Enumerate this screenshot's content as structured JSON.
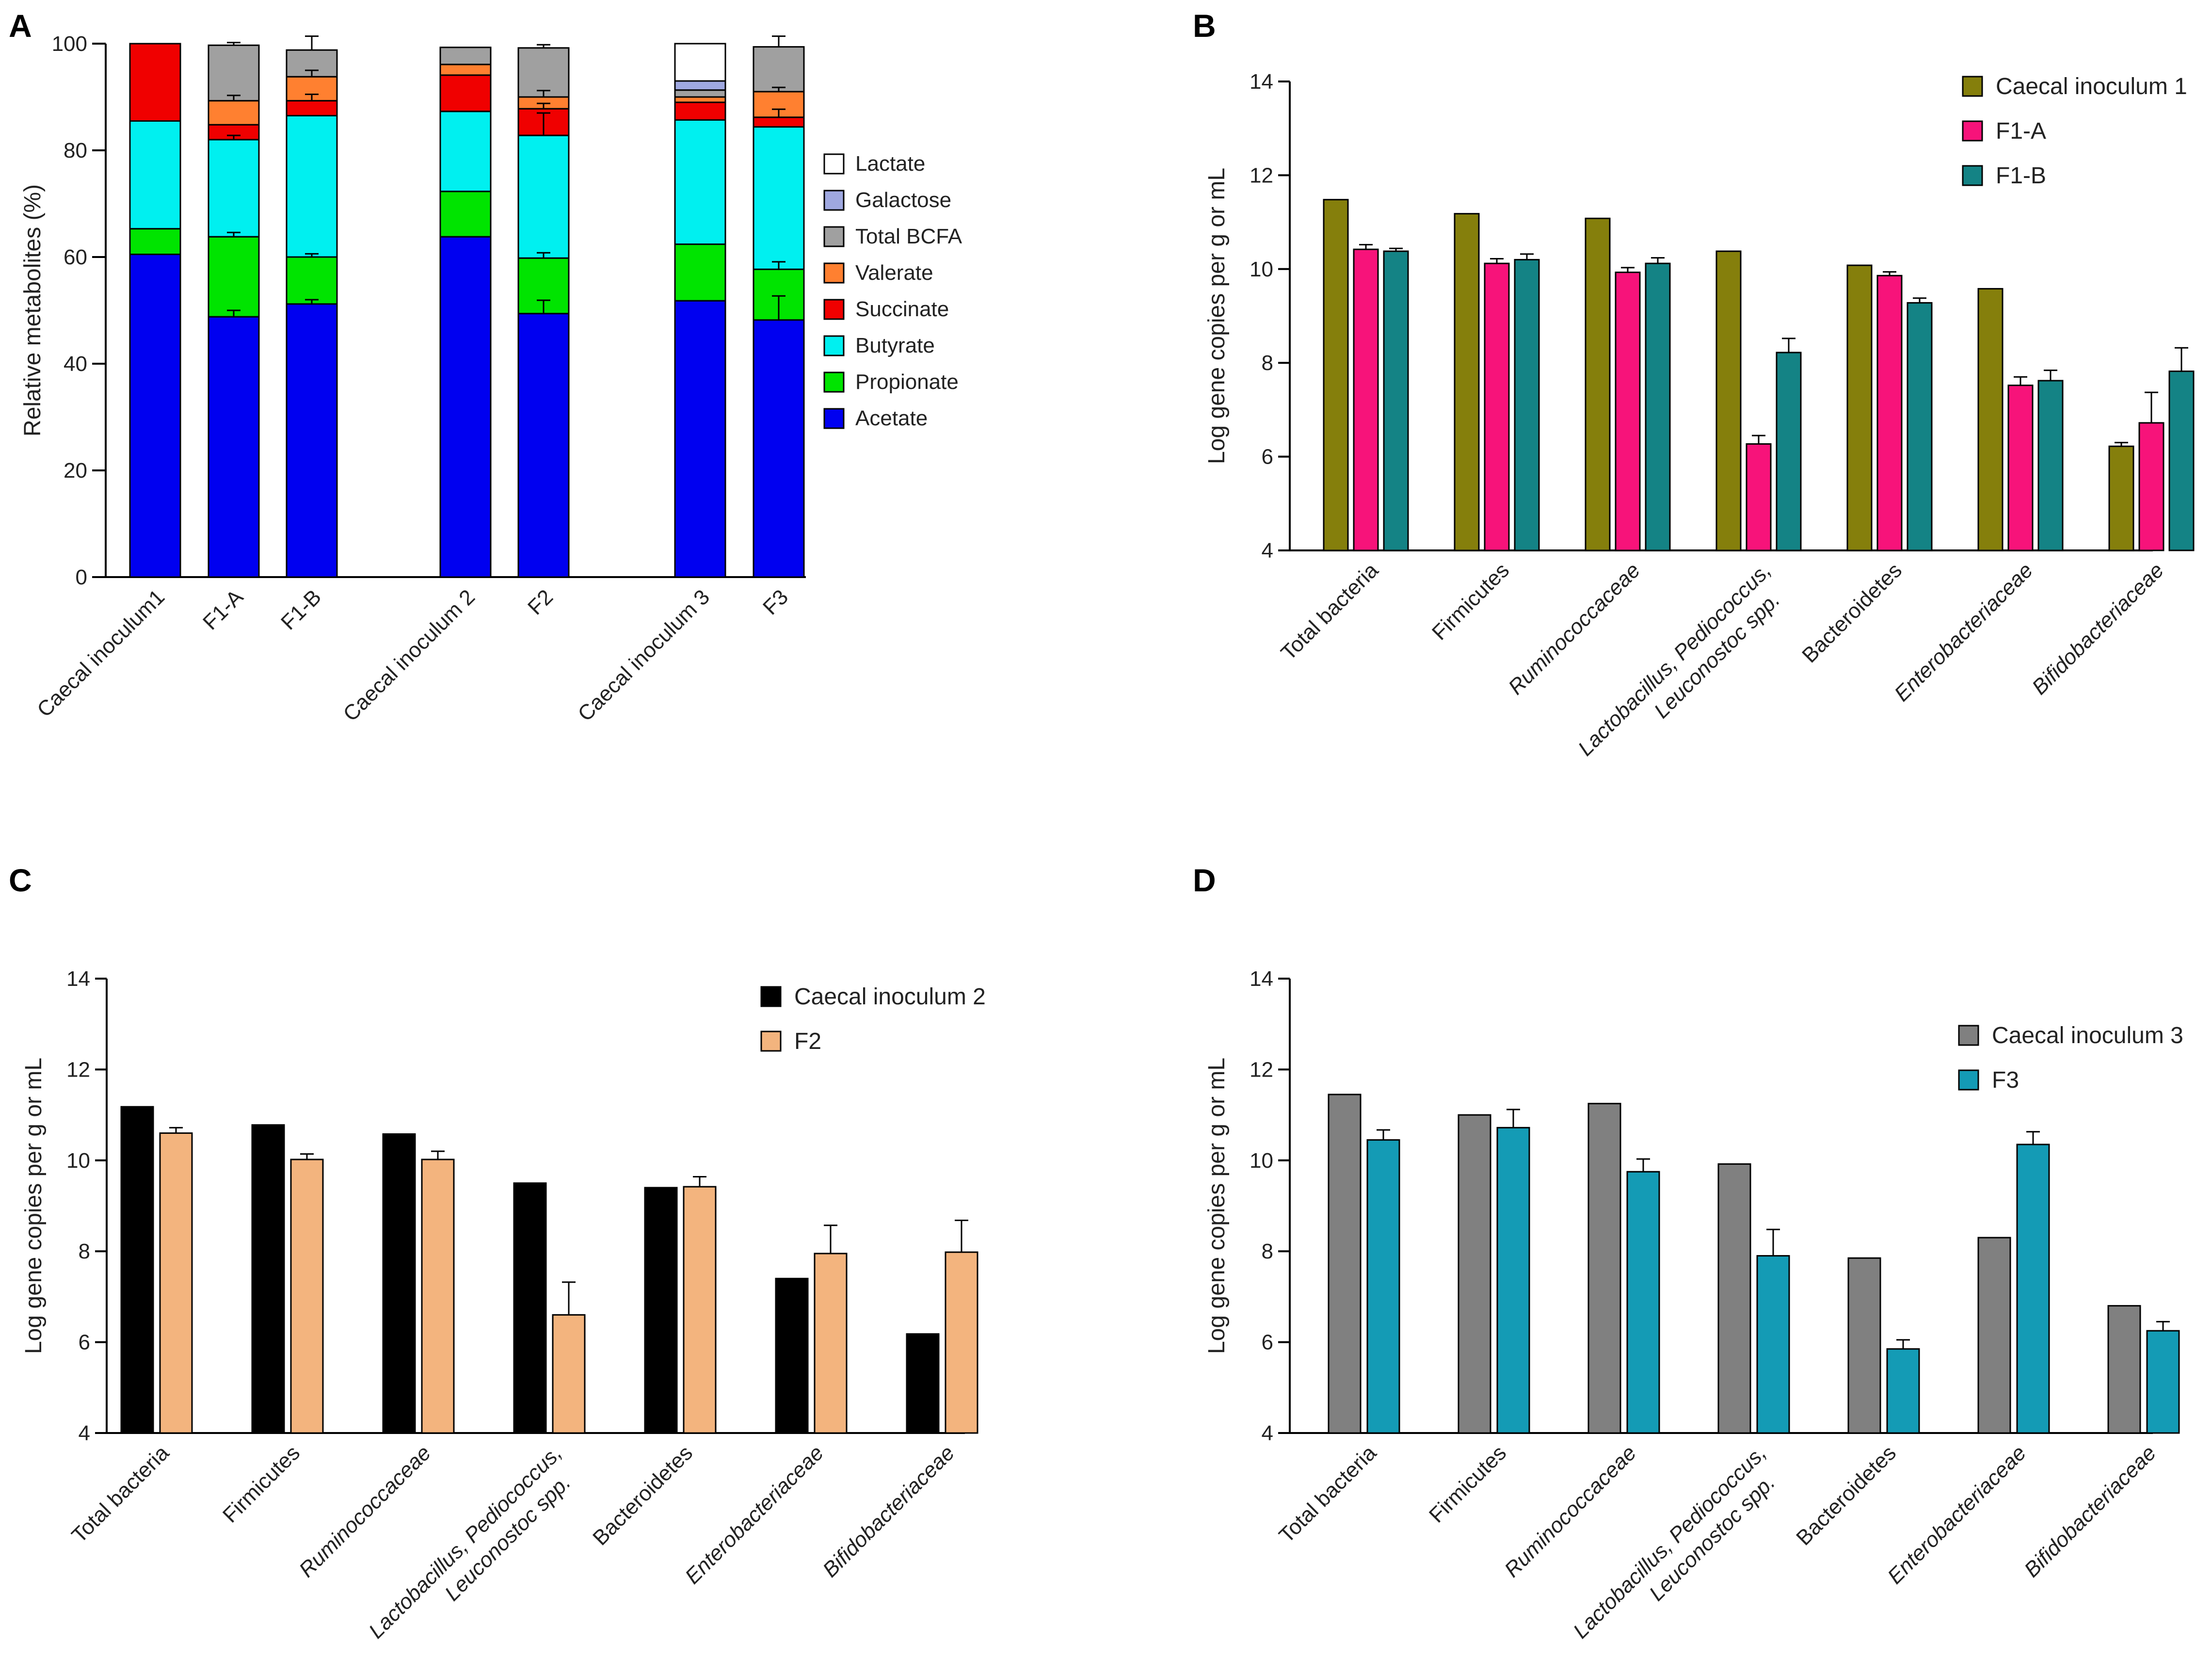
{
  "figure": {
    "panels": [
      {
        "letter": "A"
      },
      {
        "letter": "B"
      },
      {
        "letter": "C"
      },
      {
        "letter": "D"
      }
    ]
  },
  "chart_data": [
    {
      "panel": "A",
      "type": "bar",
      "stacked": true,
      "ylabel": "Relative metabolites (%)",
      "ylim": [
        0,
        100
      ],
      "yticks": [
        0,
        20,
        40,
        60,
        80,
        100
      ],
      "categories": [
        "Caecal inoculum1",
        "F1-A",
        "F1-B",
        "Caecal inoculum 2",
        "F2",
        "Caecal inoculum 3",
        "F3"
      ],
      "groups": [
        [
          0,
          1,
          2
        ],
        [
          3,
          4
        ],
        [
          5,
          6
        ]
      ],
      "series": [
        {
          "name": "Acetate",
          "color": "#0000f0",
          "values": [
            60.5,
            48.8,
            51.2,
            63.8,
            49.4,
            51.8,
            48.2
          ]
        },
        {
          "name": "Propionate",
          "color": "#00e400",
          "values": [
            4.8,
            15.0,
            8.8,
            8.5,
            10.4,
            10.6,
            9.5
          ]
        },
        {
          "name": "Butyrate",
          "color": "#00f0f0",
          "values": [
            20.2,
            18.2,
            26.5,
            15.0,
            23.0,
            23.3,
            26.7
          ]
        },
        {
          "name": "Succinate",
          "color": "#f00000",
          "values": [
            14.5,
            2.8,
            2.8,
            6.8,
            5.0,
            3.3,
            1.8
          ]
        },
        {
          "name": "Valerate",
          "color": "#ff8030",
          "values": [
            0,
            4.5,
            4.5,
            2.0,
            2.2,
            1.0,
            4.8
          ]
        },
        {
          "name": "Total BCFA",
          "color": "#a0a0a0",
          "values": [
            0,
            10.4,
            5.0,
            3.2,
            9.2,
            1.3,
            8.4
          ]
        },
        {
          "name": "Galactose",
          "color": "#9fa8e0",
          "values": [
            0,
            0,
            0,
            0,
            0,
            1.7,
            0
          ]
        },
        {
          "name": "Lactate",
          "color": "#ffffff",
          "values": [
            0,
            0,
            0,
            0,
            0,
            7.0,
            0
          ]
        }
      ],
      "error_bars": [
        {
          "series": "Acetate",
          "cat": 1,
          "err": 1.2
        },
        {
          "series": "Acetate",
          "cat": 2,
          "err": 0.8
        },
        {
          "series": "Acetate",
          "cat": 4,
          "err": 2.5
        },
        {
          "series": "Acetate",
          "cat": 6,
          "err": 4.5
        },
        {
          "series": "Propionate",
          "cat": 1,
          "err": 0.8
        },
        {
          "series": "Propionate",
          "cat": 2,
          "err": 0.6
        },
        {
          "series": "Propionate",
          "cat": 4,
          "err": 1.0
        },
        {
          "series": "Propionate",
          "cat": 6,
          "err": 1.4
        },
        {
          "series": "Butyrate",
          "cat": 1,
          "err": 0.8
        },
        {
          "series": "Butyrate",
          "cat": 4,
          "err": 4.2
        },
        {
          "series": "Succinate",
          "cat": 2,
          "err": 1.2
        },
        {
          "series": "Succinate",
          "cat": 4,
          "err": 1.0
        },
        {
          "series": "Succinate",
          "cat": 6,
          "err": 1.5
        },
        {
          "series": "Valerate",
          "cat": 1,
          "err": 1.0
        },
        {
          "series": "Valerate",
          "cat": 2,
          "err": 1.2
        },
        {
          "series": "Valerate",
          "cat": 4,
          "err": 1.2
        },
        {
          "series": "Valerate",
          "cat": 6,
          "err": 0.8
        },
        {
          "series": "Total BCFA",
          "cat": 1,
          "err": 0.5
        },
        {
          "series": "Total BCFA",
          "cat": 2,
          "err": 2.6
        },
        {
          "series": "Total BCFA",
          "cat": 4,
          "err": 0.6
        },
        {
          "series": "Total BCFA",
          "cat": 6,
          "err": 2.0
        }
      ],
      "legend": [
        "Lactate",
        "Galactose",
        "Total BCFA",
        "Valerate",
        "Succinate",
        "Butyrate",
        "Propionate",
        "Acetate"
      ]
    },
    {
      "panel": "B",
      "type": "bar",
      "ylabel": "Log gene copies per g or mL",
      "ylim": [
        4,
        14
      ],
      "yticks": [
        4,
        6,
        8,
        10,
        12,
        14
      ],
      "categories": [
        {
          "lines": [
            "Total bacteria"
          ],
          "italic": false
        },
        {
          "lines": [
            "Firmicutes"
          ],
          "italic": false
        },
        {
          "lines": [
            "Ruminococcaceae"
          ],
          "italic": true
        },
        {
          "lines": [
            "Lactobacillus, Pediococcus,",
            "Leuconostoc spp."
          ],
          "italic": true
        },
        {
          "lines": [
            "Bacteroidetes"
          ],
          "italic": false
        },
        {
          "lines": [
            "Enterobacteriaceae"
          ],
          "italic": true
        },
        {
          "lines": [
            "Bifidobacteriaceae"
          ],
          "italic": true
        }
      ],
      "series": [
        {
          "name": "Caecal inoculum 1",
          "color": "#857f0c",
          "values": [
            11.48,
            11.18,
            11.08,
            10.38,
            10.08,
            9.58,
            6.22
          ],
          "errors": [
            0,
            0,
            0,
            0,
            0,
            0,
            0.08
          ]
        },
        {
          "name": "F1-A",
          "color": "#f7137a",
          "values": [
            10.42,
            10.12,
            9.93,
            6.27,
            9.86,
            7.52,
            6.72
          ],
          "errors": [
            0.1,
            0.1,
            0.1,
            0.18,
            0.08,
            0.18,
            0.65
          ]
        },
        {
          "name": "F1-B",
          "color": "#148385",
          "values": [
            10.38,
            10.2,
            10.12,
            8.22,
            9.28,
            7.62,
            7.82
          ],
          "errors": [
            0.06,
            0.12,
            0.12,
            0.3,
            0.1,
            0.22,
            0.5
          ]
        }
      ]
    },
    {
      "panel": "C",
      "type": "bar",
      "ylabel": "Log gene copies per g or mL",
      "ylim": [
        4,
        14
      ],
      "yticks": [
        4,
        6,
        8,
        10,
        12,
        14
      ],
      "categories": [
        {
          "lines": [
            "Total bacteria"
          ],
          "italic": false
        },
        {
          "lines": [
            "Firmicutes"
          ],
          "italic": false
        },
        {
          "lines": [
            "Ruminococcaceae"
          ],
          "italic": true
        },
        {
          "lines": [
            "Lactobacillus, Pediococcus,",
            "Leuconostoc spp."
          ],
          "italic": true
        },
        {
          "lines": [
            "Bacteroidetes"
          ],
          "italic": false
        },
        {
          "lines": [
            "Enterobacteriaceae"
          ],
          "italic": true
        },
        {
          "lines": [
            "Bifidobacteriaceae"
          ],
          "italic": true
        }
      ],
      "series": [
        {
          "name": "Caecal inoculum 2",
          "color": "#000000",
          "values": [
            11.18,
            10.78,
            10.58,
            9.5,
            9.4,
            7.4,
            6.18
          ],
          "errors": [
            0,
            0,
            0,
            0,
            0,
            0,
            0
          ]
        },
        {
          "name": "F2",
          "color": "#f3b47e",
          "values": [
            10.6,
            10.02,
            10.02,
            6.6,
            9.42,
            7.95,
            7.98
          ],
          "errors": [
            0.12,
            0.12,
            0.18,
            0.72,
            0.22,
            0.62,
            0.7
          ]
        }
      ]
    },
    {
      "panel": "D",
      "type": "bar",
      "ylabel": "Log gene copies per g or mL",
      "ylim": [
        4,
        14
      ],
      "yticks": [
        4,
        6,
        8,
        10,
        12,
        14
      ],
      "categories": [
        {
          "lines": [
            "Total bacteria"
          ],
          "italic": false
        },
        {
          "lines": [
            "Firmicutes"
          ],
          "italic": false
        },
        {
          "lines": [
            "Ruminococcaceae"
          ],
          "italic": true
        },
        {
          "lines": [
            "Lactobacillus, Pediococcus,",
            "Leuconostoc spp."
          ],
          "italic": true
        },
        {
          "lines": [
            "Bacteroidetes"
          ],
          "italic": false
        },
        {
          "lines": [
            "Enterobacteriaceae"
          ],
          "italic": true
        },
        {
          "lines": [
            "Bifidobacteriaceae"
          ],
          "italic": true
        }
      ],
      "series": [
        {
          "name": "Caecal inoculum 3",
          "color": "#808080",
          "values": [
            11.45,
            11.0,
            11.25,
            9.92,
            7.85,
            8.3,
            6.8
          ],
          "errors": [
            0,
            0,
            0,
            0,
            0,
            0,
            0
          ]
        },
        {
          "name": "F3",
          "color": "#149bb5",
          "values": [
            10.45,
            10.72,
            9.75,
            7.9,
            5.85,
            10.35,
            6.25
          ],
          "errors": [
            0.22,
            0.4,
            0.28,
            0.58,
            0.2,
            0.28,
            0.2
          ]
        }
      ]
    }
  ]
}
